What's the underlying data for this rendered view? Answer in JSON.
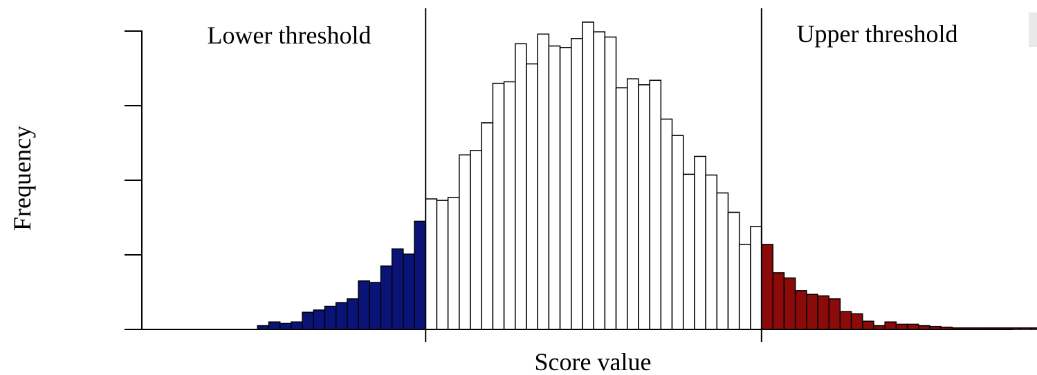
{
  "chart_data": {
    "type": "bar",
    "xlabel": "Score value",
    "ylabel": "Frequency",
    "annotations": [
      {
        "text": "Lower threshold"
      },
      {
        "text": "Upper threshold"
      }
    ],
    "thresholds": [
      -1,
      1
    ],
    "region_colors": {
      "lower": "#0a1478",
      "middle": "#ffffff",
      "upper": "#8b0a0a"
    },
    "xlim": [
      -2.525,
      2.5
    ],
    "ylim": [
      0,
      4
    ],
    "bin_width": 0.0667,
    "bin_start": -1.0,
    "y_ticks": [
      0,
      1,
      2,
      3,
      4
    ],
    "x_ticks": [
      -1,
      1
    ],
    "grid": false,
    "series": [
      {
        "region": "lower",
        "values": [
          0.0,
          0.0,
          0.0,
          0.0,
          0.0,
          0.05,
          0.1,
          0.08,
          0.1,
          0.23,
          0.26,
          0.31,
          0.36,
          0.41,
          0.65,
          0.63,
          0.85,
          1.08,
          1.01,
          1.45
        ]
      },
      {
        "region": "middle",
        "values": [
          1.75,
          1.73,
          1.77,
          2.34,
          2.4,
          2.77,
          3.3,
          3.32,
          3.83,
          3.56,
          3.96,
          3.8,
          3.78,
          3.9,
          4.12,
          3.99,
          3.92,
          3.24,
          3.36,
          3.28,
          3.34,
          2.82,
          2.6,
          2.08,
          2.32,
          2.07,
          1.83,
          1.57,
          1.14,
          1.38
        ]
      },
      {
        "region": "upper",
        "values": [
          1.14,
          0.76,
          0.69,
          0.52,
          0.47,
          0.45,
          0.41,
          0.24,
          0.21,
          0.11,
          0.05,
          0.1,
          0.07,
          0.07,
          0.05,
          0.04,
          0.03,
          0.02,
          0.02,
          0.02,
          0.02,
          0.02,
          0.02,
          0.02,
          0.02
        ]
      }
    ]
  }
}
